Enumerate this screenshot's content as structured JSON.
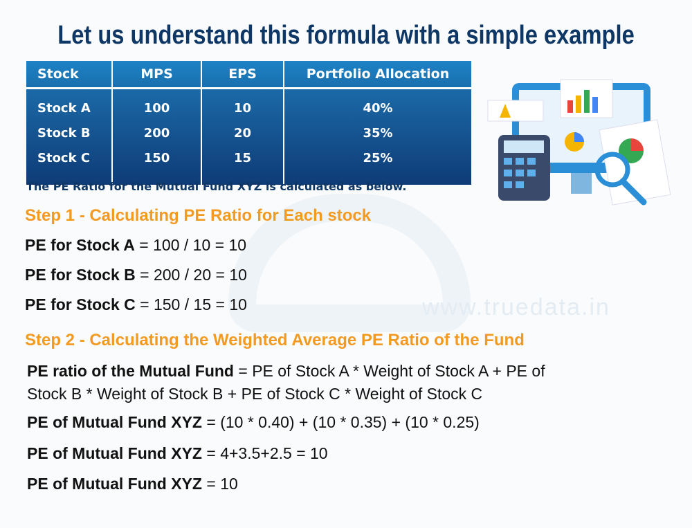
{
  "title": "Let us understand this formula with a simple example",
  "table": {
    "headers": [
      "Stock",
      "MPS",
      "EPS",
      "Portfolio Allocation"
    ],
    "rows": [
      [
        "Stock A",
        "100",
        "10",
        "40%"
      ],
      [
        "Stock B",
        "200",
        "20",
        "35%"
      ],
      [
        "Stock C",
        "150",
        "15",
        "25%"
      ]
    ]
  },
  "intro": "The PE Ratio for the Mutual Fund XYZ is calculated as below.",
  "step1": {
    "heading": "Step 1 - Calculating PE Ratio for Each stock",
    "lines": [
      {
        "bold": "PE for Stock A",
        "rest": " = 100 / 10 = 10"
      },
      {
        "bold": "PE for Stock B",
        "rest": " = 200 / 20 = 10"
      },
      {
        "bold": "PE for Stock C",
        "rest": " = 150 / 15 = 10"
      }
    ]
  },
  "step2": {
    "heading": "Step 2 - Calculating the Weighted Average PE Ratio of the Fund",
    "lines": [
      {
        "bold": "PE ratio of the Mutual Fund",
        "rest": " = PE of Stock A * Weight of Stock A + PE of",
        "rest2": "Stock B * Weight of Stock B + PE of Stock C * Weight of Stock C"
      },
      {
        "bold": "PE of Mutual Fund XYZ",
        "rest": " = (10 * 0.40) + (10 * 0.35) + (10 * 0.25)"
      },
      {
        "bold": "PE of Mutual Fund XYZ",
        "rest": " = 4+3.5+2.5 = 10"
      },
      {
        "bold": "PE of Mutual Fund XYZ",
        "rest": " = 10"
      }
    ]
  },
  "watermark": "www.truedata.in",
  "colors": {
    "title": "#0e3765",
    "step": "#f29a21",
    "table_top": "#1d82c4",
    "table_bottom": "#0e3b76"
  }
}
